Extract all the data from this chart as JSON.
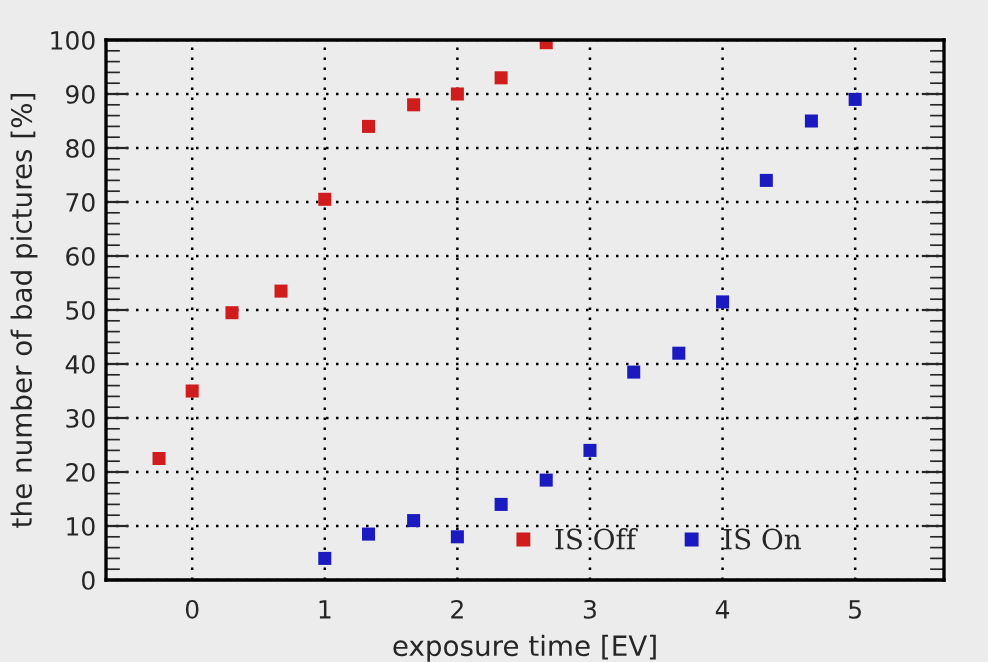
{
  "chart_data": {
    "type": "scatter",
    "xlabel": "exposure time [EV]",
    "ylabel": "the number of bad pictures [%]",
    "xlim": [
      -0.65,
      5.67
    ],
    "ylim": [
      0,
      100
    ],
    "xticks": [
      0,
      1,
      2,
      3,
      4,
      5
    ],
    "yticks": [
      0,
      10,
      20,
      30,
      40,
      50,
      60,
      70,
      80,
      90,
      100
    ],
    "grid": true,
    "legend": "bottom right",
    "marker": "square",
    "series": [
      {
        "name": "IS Off",
        "color": "#d01c1c",
        "x": [
          -0.25,
          0,
          0.3,
          0.67,
          1,
          1.33,
          1.67,
          2,
          2.33,
          2.67
        ],
        "values": [
          22.5,
          35,
          49.5,
          53.5,
          70.5,
          84,
          88,
          90,
          93,
          99.5
        ]
      },
      {
        "name": "IS On",
        "color": "#1a1ac0",
        "x": [
          1,
          1.33,
          1.67,
          2,
          2.33,
          2.67,
          3,
          3.33,
          3.67,
          4,
          4.33,
          4.67,
          5
        ],
        "values": [
          4,
          8.5,
          11,
          8,
          14,
          18.5,
          24,
          38.5,
          42,
          51.5,
          74,
          85,
          89
        ]
      }
    ]
  }
}
